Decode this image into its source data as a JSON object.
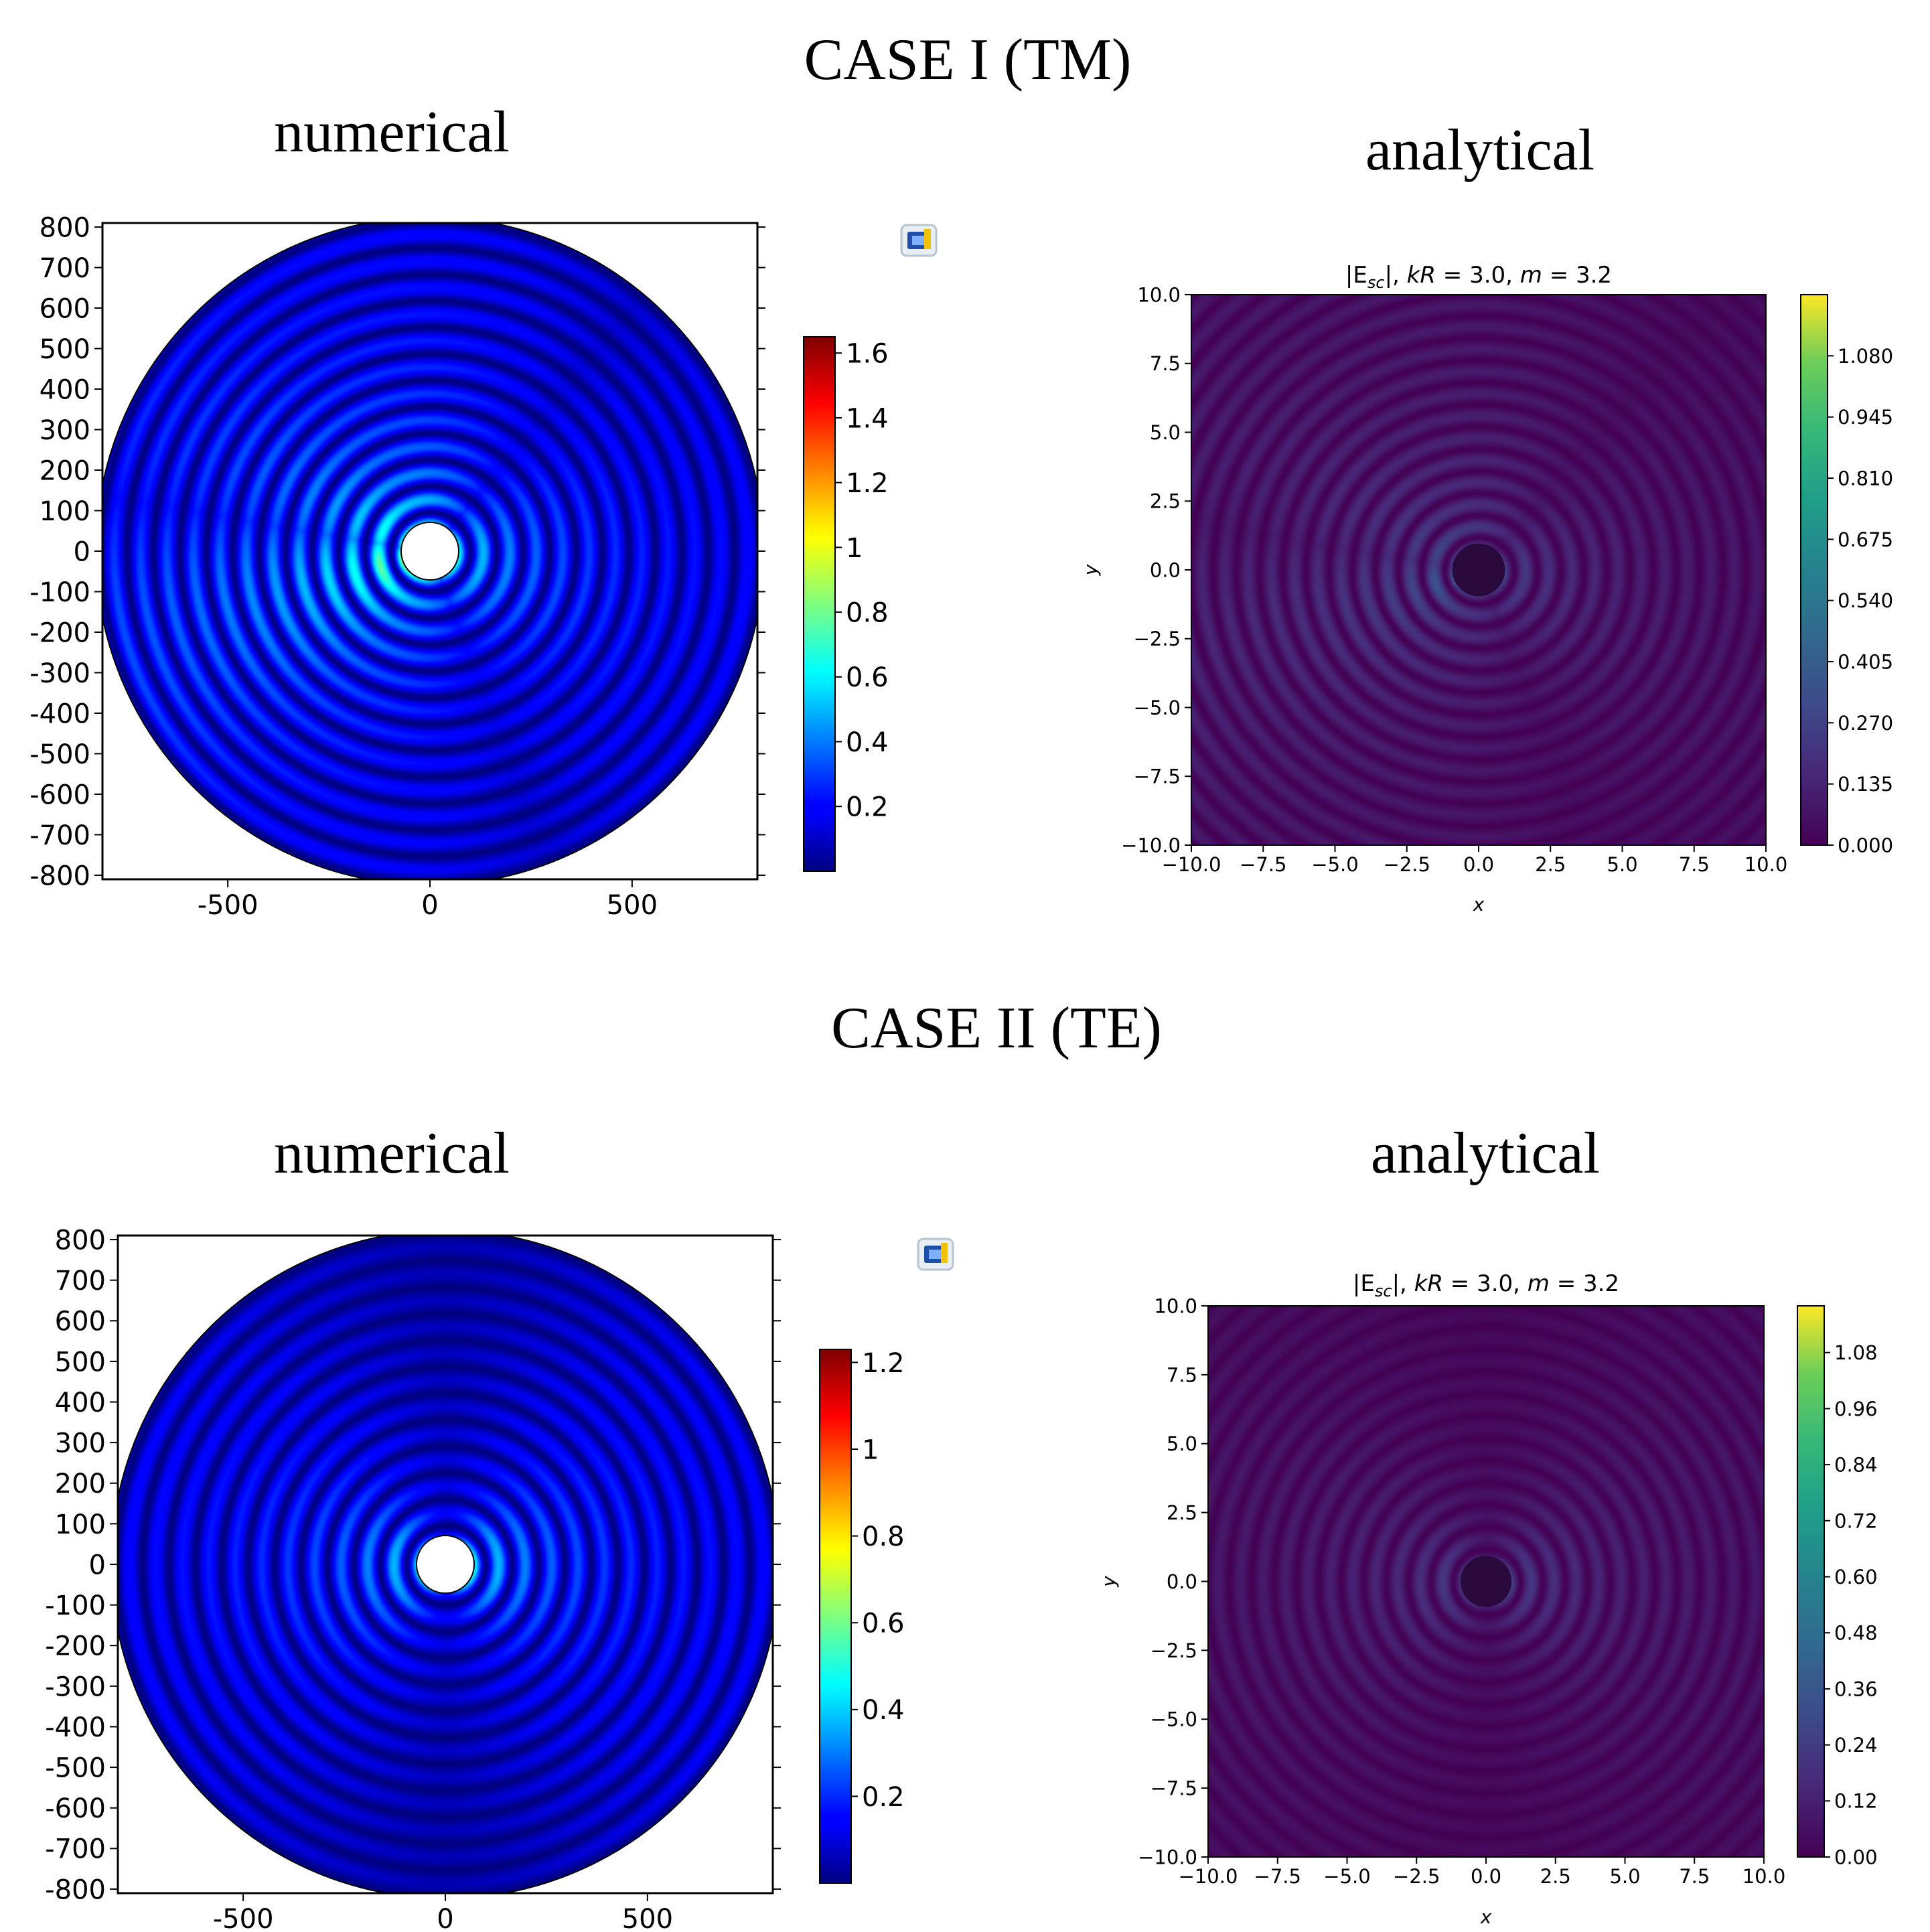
{
  "page": {
    "case1_title": "CASE I (TM)",
    "case2_title": "CASE II (TE)",
    "numerical_label": "numerical",
    "analytical_label": "analytical"
  },
  "chart_data": [
    {
      "id": "case1-numerical",
      "type": "heatmap",
      "title": "numerical",
      "xticks": [
        "-500",
        "0",
        "500"
      ],
      "xtick_values": [
        -500,
        0,
        500
      ],
      "yticks": [
        "800",
        "700",
        "600",
        "500",
        "400",
        "300",
        "200",
        "100",
        "0",
        "-100",
        "-200",
        "-300",
        "-400",
        "-500",
        "-600",
        "-700",
        "-800"
      ],
      "ytick_values": [
        800,
        700,
        600,
        500,
        400,
        300,
        200,
        100,
        0,
        -100,
        -200,
        -300,
        -400,
        -500,
        -600,
        -700,
        -800
      ],
      "xlim": [
        -810,
        810
      ],
      "ylim": [
        -810,
        810
      ],
      "colormap": "jet",
      "colorbar_ticks": [
        "1.6",
        "1.4",
        "1.2",
        "1",
        "0.8",
        "0.6",
        "0.4",
        "0.2"
      ],
      "colorbar_values": [
        1.6,
        1.4,
        1.2,
        1.0,
        0.8,
        0.6,
        0.4,
        0.2
      ],
      "colorbar_range": [
        0.0,
        1.65
      ],
      "pattern": "tm"
    },
    {
      "id": "case1-analytical",
      "type": "heatmap",
      "title_prefix": "|E",
      "title_sub": "sc",
      "title_mid": "|, ",
      "title_kr": "kR",
      "title_kr_val": " =  3.0, ",
      "title_m": "m",
      "title_m_val": " =  3.2",
      "xlabel": "x",
      "ylabel": "y",
      "xticks": [
        "−10.0",
        "−7.5",
        "−5.0",
        "−2.5",
        "0.0",
        "2.5",
        "5.0",
        "7.5",
        "10.0"
      ],
      "xtick_values": [
        -10,
        -7.5,
        -5,
        -2.5,
        0,
        2.5,
        5,
        7.5,
        10
      ],
      "yticks": [
        "10.0",
        "7.5",
        "5.0",
        "2.5",
        "0.0",
        "−2.5",
        "−5.0",
        "−7.5",
        "−10.0"
      ],
      "ytick_values": [
        10,
        7.5,
        5,
        2.5,
        0,
        -2.5,
        -5,
        -7.5,
        -10
      ],
      "xlim": [
        -10,
        10
      ],
      "ylim": [
        -10,
        10
      ],
      "colormap": "viridis",
      "colorbar_ticks": [
        "1.080",
        "0.945",
        "0.810",
        "0.675",
        "0.540",
        "0.405",
        "0.270",
        "0.135",
        "0.000"
      ],
      "colorbar_values": [
        1.08,
        0.945,
        0.81,
        0.675,
        0.54,
        0.405,
        0.27,
        0.135,
        0.0
      ],
      "colorbar_range": [
        0.0,
        1.215
      ],
      "pattern": "tm"
    },
    {
      "id": "case2-numerical",
      "type": "heatmap",
      "title": "numerical",
      "xticks": [
        "-500",
        "0",
        "500"
      ],
      "xtick_values": [
        -500,
        0,
        500
      ],
      "yticks": [
        "800",
        "700",
        "600",
        "500",
        "400",
        "300",
        "200",
        "100",
        "0",
        "-100",
        "-200",
        "-300",
        "-400",
        "-500",
        "-600",
        "-700",
        "-800"
      ],
      "ytick_values": [
        800,
        700,
        600,
        500,
        400,
        300,
        200,
        100,
        0,
        -100,
        -200,
        -300,
        -400,
        -500,
        -600,
        -700,
        -800
      ],
      "xlim": [
        -810,
        810
      ],
      "ylim": [
        -810,
        810
      ],
      "colormap": "jet",
      "colorbar_ticks": [
        "1.2",
        "1",
        "0.8",
        "0.6",
        "0.4",
        "0.2"
      ],
      "colorbar_values": [
        1.2,
        1.0,
        0.8,
        0.6,
        0.4,
        0.2
      ],
      "colorbar_range": [
        0.0,
        1.23
      ],
      "pattern": "te"
    },
    {
      "id": "case2-analytical",
      "type": "heatmap",
      "title_prefix": "|E",
      "title_sub": "sc",
      "title_mid": "|, ",
      "title_kr": "kR",
      "title_kr_val": " =  3.0, ",
      "title_m": "m",
      "title_m_val": " =  3.2",
      "xlabel": "x",
      "ylabel": "y",
      "xticks": [
        "−10.0",
        "−7.5",
        "−5.0",
        "−2.5",
        "0.0",
        "2.5",
        "5.0",
        "7.5",
        "10.0"
      ],
      "xtick_values": [
        -10,
        -7.5,
        -5,
        -2.5,
        0,
        2.5,
        5,
        7.5,
        10
      ],
      "yticks": [
        "10.0",
        "7.5",
        "5.0",
        "2.5",
        "0.0",
        "−2.5",
        "−5.0",
        "−7.5",
        "−10.0"
      ],
      "ytick_values": [
        10,
        7.5,
        5,
        2.5,
        0,
        -2.5,
        -5,
        -7.5,
        -10
      ],
      "xlim": [
        -10,
        10
      ],
      "ylim": [
        -10,
        10
      ],
      "colormap": "viridis",
      "colorbar_ticks": [
        "1.08",
        "0.96",
        "0.84",
        "0.72",
        "0.60",
        "0.48",
        "0.36",
        "0.24",
        "0.12",
        "0.00"
      ],
      "colorbar_values": [
        1.08,
        0.96,
        0.84,
        0.72,
        0.6,
        0.48,
        0.36,
        0.24,
        0.12,
        0.0
      ],
      "colorbar_range": [
        0.0,
        1.18
      ],
      "pattern": "te"
    }
  ]
}
